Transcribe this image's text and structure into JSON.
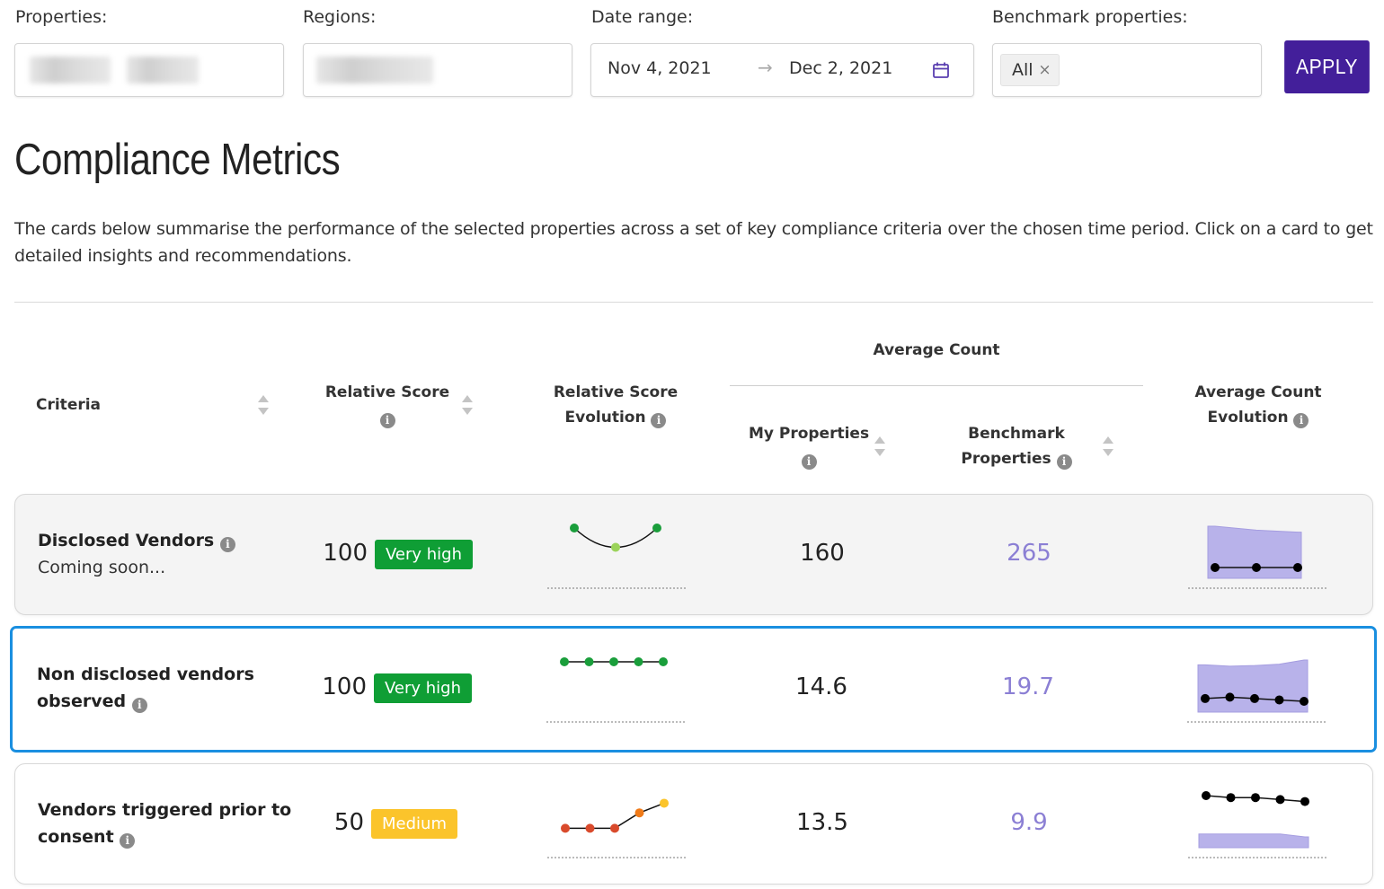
{
  "filters": {
    "properties_label": "Properties:",
    "regions_label": "Regions:",
    "date_label": "Date range:",
    "date_start": "Nov 4, 2021",
    "date_arrow": "→",
    "date_end": "Dec 2, 2021",
    "benchmark_label": "Benchmark properties:",
    "benchmark_tag": "All",
    "benchmark_tag_remove": "×",
    "apply_label": "APPLY"
  },
  "page": {
    "title": "Compliance Metrics",
    "description": "The cards below summarise the performance of the selected properties across a set of key compliance criteria over the chosen time period. Click on a card to get detailed insights and recommendations."
  },
  "table": {
    "headers": {
      "criteria": "Criteria",
      "relative_score": "Relative Score",
      "relative_score_evolution_1": "Relative Score",
      "relative_score_evolution_2": "Evolution",
      "average_count": "Average Count",
      "my_properties": "My Properties",
      "benchmark_1": "Benchmark",
      "benchmark_2": "Properties",
      "avg_count_evolution_1": "Average Count",
      "avg_count_evolution_2": "Evolution",
      "info": "i"
    },
    "rows": [
      {
        "title": "Disclosed Vendors",
        "subtitle": "Coming soon...",
        "score": "100",
        "badge": "Very high",
        "my_properties": "160",
        "benchmark": "265",
        "score_evolution": [
          1,
          0.5,
          1
        ],
        "score_colors": [
          "#1a9e3b",
          "#9bd35a",
          "#1a9e3b"
        ],
        "count_mine": [
          160,
          160,
          160
        ],
        "count_bench": [
          265,
          255,
          250
        ]
      },
      {
        "title_1": "Non disclosed vendors",
        "title_2": "observed",
        "score": "100",
        "badge": "Very high",
        "my_properties": "14.6",
        "benchmark": "19.7",
        "score_evolution": [
          1,
          1,
          1,
          1,
          1
        ],
        "score_colors": [
          "#1a9e3b",
          "#1a9e3b",
          "#1a9e3b",
          "#1a9e3b",
          "#1a9e3b"
        ],
        "count_mine": [
          14.6,
          14.8,
          14.6,
          14.4,
          14.2
        ],
        "count_bench": [
          19.5,
          19.3,
          19.4,
          19.6,
          20.2
        ]
      },
      {
        "title_1": "Vendors triggered prior to",
        "title_2": "consent",
        "score": "50",
        "badge": "Medium",
        "my_properties": "13.5",
        "benchmark": "9.9",
        "score_evolution": [
          0.2,
          0.2,
          0.2,
          0.6,
          0.85
        ],
        "score_colors": [
          "#d94a2c",
          "#d94a2c",
          "#d94a2c",
          "#f07a18",
          "#fbc42b"
        ],
        "count_mine": [
          13.8,
          13.6,
          13.6,
          13.4,
          13.2
        ],
        "count_bench": [
          9.9,
          9.9,
          9.9,
          9.9,
          9.6
        ]
      }
    ]
  },
  "colors": {
    "accent": "#431f9a",
    "very_high": "#0f9e35",
    "medium": "#fbc42b",
    "benchmark_text": "#8b7fd4",
    "area_fill": "#b8b2ea",
    "selected_outline": "#1a8fe0"
  },
  "icons": {
    "calendar": "calendar-icon",
    "info": "info-icon",
    "sort": "sort-icon",
    "close": "close-icon"
  }
}
